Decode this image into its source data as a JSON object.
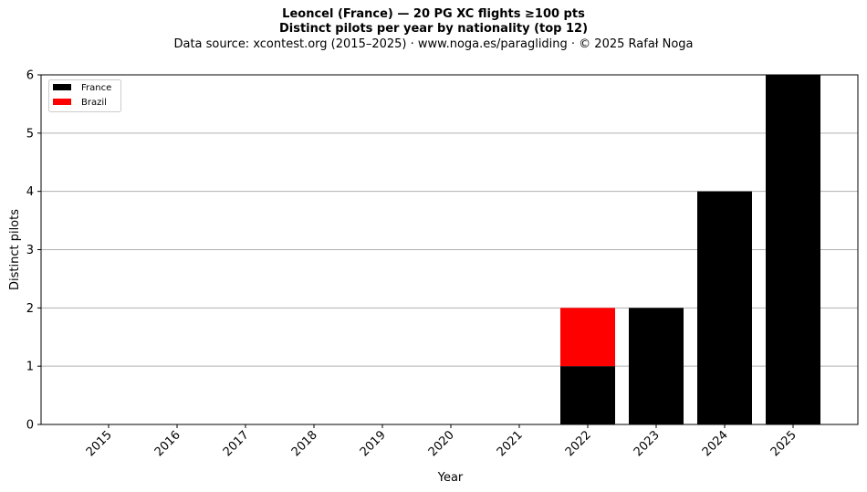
{
  "chart_data": {
    "type": "bar",
    "stacked": true,
    "title": "Leoncel (France)  —  20 PG XC flights ≥100 pts",
    "title_line2": "Distinct pilots per year by nationality (top 12)",
    "subtitle": "Data source: xcontest.org (2015–2025)  ·  www.noga.es/paragliding  ·  © 2025 Rafał Noga",
    "xlabel": "Year",
    "ylabel": "Distinct pilots",
    "categories": [
      "2015",
      "2016",
      "2017",
      "2018",
      "2019",
      "2020",
      "2021",
      "2022",
      "2023",
      "2024",
      "2025"
    ],
    "series": [
      {
        "name": "France",
        "color": "#000000",
        "values": [
          0,
          0,
          0,
          0,
          0,
          0,
          0,
          1,
          2,
          4,
          6
        ]
      },
      {
        "name": "Brazil",
        "color": "#ff0000",
        "values": [
          0,
          0,
          0,
          0,
          0,
          0,
          0,
          1,
          0,
          0,
          0
        ]
      }
    ],
    "ylim": [
      0,
      6
    ],
    "yticks": [
      0,
      1,
      2,
      3,
      4,
      5,
      6
    ],
    "grid": "horizontal",
    "legend_position": "top-left"
  }
}
